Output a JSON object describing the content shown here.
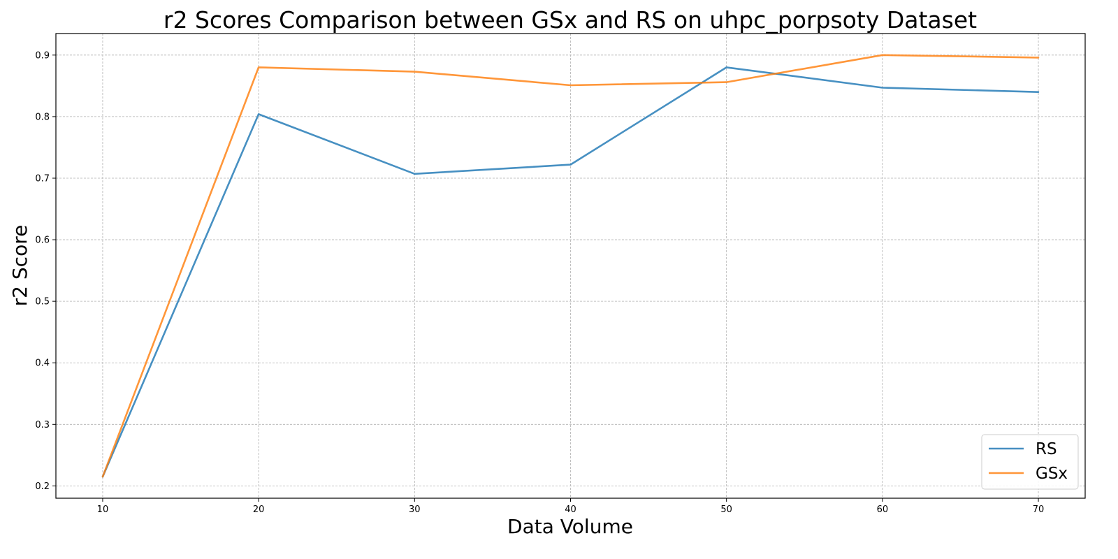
{
  "chart_data": {
    "type": "line",
    "title": "r2 Scores Comparison between GSx and RS on uhpc_porpsoty Dataset",
    "xlabel": "Data Volume",
    "ylabel": "r2 Score",
    "x": [
      10,
      20,
      30,
      40,
      50,
      60,
      70
    ],
    "xticks": [
      10,
      20,
      30,
      40,
      50,
      60,
      70
    ],
    "yticks": [
      0.2,
      0.3,
      0.4,
      0.5,
      0.6,
      0.7,
      0.8,
      0.9
    ],
    "xlim": [
      7,
      73
    ],
    "ylim": [
      0.18,
      0.935
    ],
    "grid": true,
    "legend_position": "bottom-right",
    "series": [
      {
        "name": "RS",
        "color": "#1f77b4",
        "values": [
          0.215,
          0.804,
          0.707,
          0.722,
          0.88,
          0.847,
          0.84
        ]
      },
      {
        "name": "GSx",
        "color": "#ff7f0e",
        "values": [
          0.215,
          0.88,
          0.873,
          0.851,
          0.856,
          0.9,
          0.896
        ]
      }
    ]
  }
}
